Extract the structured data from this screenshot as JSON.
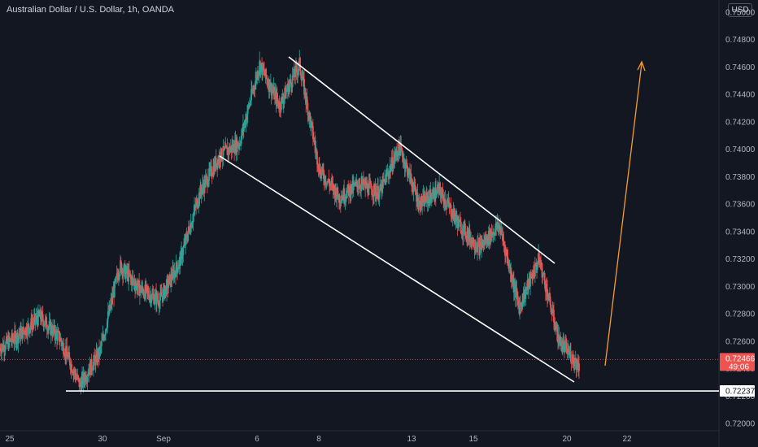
{
  "chart_data": {
    "type": "candlestick",
    "title": "Australian Dollar / U.S. Dollar, 1h, OANDA",
    "currency": "USD",
    "x_ticks": [
      "25",
      "30",
      "Sep",
      "6",
      "8",
      "13",
      "15",
      "20",
      "22"
    ],
    "y_ticks": [
      "0.72000",
      "0.72200",
      "0.72400",
      "0.72600",
      "0.72800",
      "0.73000",
      "0.73200",
      "0.73400",
      "0.73600",
      "0.73800",
      "0.74000",
      "0.74200",
      "0.74400",
      "0.74600",
      "0.74800",
      "0.75000"
    ],
    "y_values": [
      0.72,
      0.722,
      0.724,
      0.726,
      0.728,
      0.73,
      0.732,
      0.734,
      0.736,
      0.738,
      0.74,
      0.742,
      0.744,
      0.746,
      0.748,
      0.75
    ],
    "ylim": [
      0.7185,
      0.7515
    ],
    "price_path": [
      [
        "Aug 23",
        0.7255
      ],
      [
        "Aug 24",
        0.7265
      ],
      [
        "Aug 25",
        0.7278
      ],
      [
        "Aug 26",
        0.7262
      ],
      [
        "Aug 27",
        0.7228
      ],
      [
        "Aug 28",
        0.7252
      ],
      [
        "Aug 29",
        0.7315
      ],
      [
        "Aug 30",
        0.7298
      ],
      [
        "Aug 31",
        0.729
      ],
      [
        "Sep 1",
        0.7318
      ],
      [
        "Sep 2",
        0.7368
      ],
      [
        "Sep 3",
        0.7395
      ],
      [
        "Sep 4",
        0.7405
      ],
      [
        "Sep 5",
        0.7462
      ],
      [
        "Sep 6",
        0.7432
      ],
      [
        "Sep 7",
        0.7462
      ],
      [
        "Sep 8",
        0.7385
      ],
      [
        "Sep 9",
        0.7365
      ],
      [
        "Sep 10",
        0.7375
      ],
      [
        "Sep 11",
        0.7368
      ],
      [
        "Sep 12",
        0.7402
      ],
      [
        "Sep 13",
        0.736
      ],
      [
        "Sep 14",
        0.737
      ],
      [
        "Sep 15",
        0.7345
      ],
      [
        "Sep 16",
        0.7328
      ],
      [
        "Sep 17",
        0.7345
      ],
      [
        "Sep 18",
        0.7285
      ],
      [
        "Sep 19",
        0.732
      ],
      [
        "Sep 20",
        0.726
      ],
      [
        "Sep 21",
        0.7242
      ]
    ],
    "support_level": 0.72237,
    "support_label": "0.72237",
    "last_price": 0.72466,
    "last_price_label": "0.72466",
    "countdown_label": "49:06",
    "colors": {
      "up": "#26a69a",
      "down": "#ef5350",
      "lines": "#ffffff",
      "arrow": "#f59d32",
      "last_price": "#ef5350",
      "axis_text": "#b2b5be",
      "background": "#131722"
    }
  }
}
